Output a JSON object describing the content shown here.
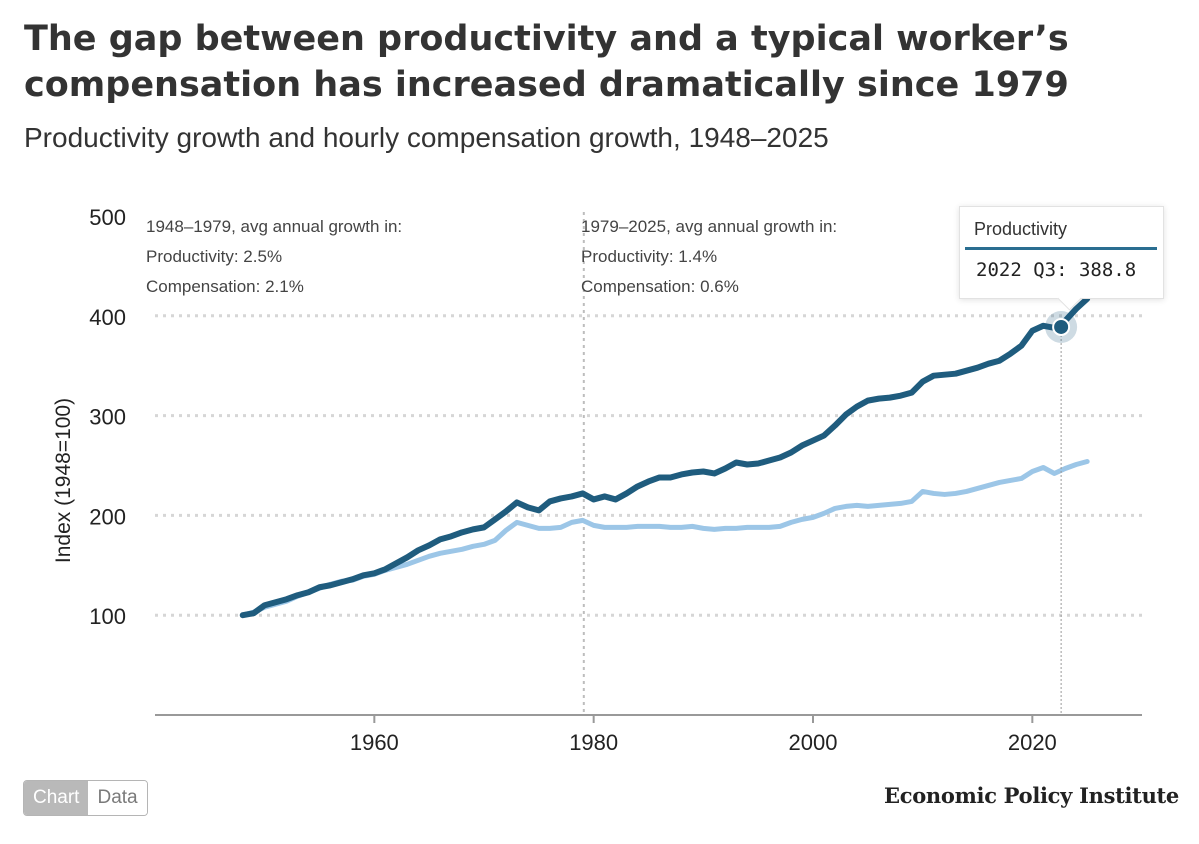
{
  "header": {
    "title": "The gap between productivity and a typical worker’s compensation has increased dramatically since 1979",
    "subtitle": "Productivity growth and hourly compensation growth, 1948–2025"
  },
  "annotations": {
    "left": {
      "heading": "1948–1979, avg annual growth in:",
      "productivity": "Productivity: 2.5%",
      "compensation": "Compensation: 2.1%"
    },
    "right": {
      "heading": "1979–2025, avg annual growth in:",
      "productivity": "Productivity: 1.4%",
      "compensation": "Compensation: 0.6%"
    }
  },
  "tooltip": {
    "series": "Productivity",
    "label": "2022 Q3: 388.8",
    "x": 2022.625,
    "y": 388.8
  },
  "toggle": {
    "chart_label": "Chart",
    "data_label": "Data",
    "active": "Chart"
  },
  "brand": "Economic Policy Institute",
  "colors": {
    "productivity": "#1f5c7e",
    "compensation": "#9cc6e7",
    "grid": "#d6d6d6",
    "text": "#333333"
  },
  "chart_data": {
    "type": "line",
    "ylabel": "Index (1948=100)",
    "xlabel": "",
    "xlim": [
      1940,
      2030
    ],
    "ylim": [
      0,
      500
    ],
    "xticks": [
      1960,
      1980,
      2000,
      2020
    ],
    "yticks": [
      100,
      200,
      300,
      400,
      500
    ],
    "grid": "horizontal dotted",
    "reference_lines": [
      1979
    ],
    "series": [
      {
        "key": "productivity",
        "x": [
          1948,
          1949,
          1950,
          1951,
          1952,
          1953,
          1954,
          1955,
          1956,
          1957,
          1958,
          1959,
          1960,
          1961,
          1962,
          1963,
          1964,
          1965,
          1966,
          1967,
          1968,
          1969,
          1970,
          1971,
          1972,
          1973,
          1974,
          1975,
          1976,
          1977,
          1978,
          1979,
          1980,
          1981,
          1982,
          1983,
          1984,
          1985,
          1986,
          1987,
          1988,
          1989,
          1990,
          1991,
          1992,
          1993,
          1994,
          1995,
          1996,
          1997,
          1998,
          1999,
          2000,
          2001,
          2002,
          2003,
          2004,
          2005,
          2006,
          2007,
          2008,
          2009,
          2010,
          2011,
          2012,
          2013,
          2014,
          2015,
          2016,
          2017,
          2018,
          2019,
          2020,
          2021,
          2022,
          2023,
          2024,
          2025
        ],
        "values": [
          100,
          102,
          110,
          113,
          116,
          120,
          123,
          128,
          130,
          133,
          136,
          140,
          142,
          146,
          152,
          158,
          165,
          170,
          176,
          179,
          183,
          186,
          188,
          196,
          204,
          213,
          208,
          205,
          214,
          217,
          219,
          222,
          216,
          219,
          216,
          222,
          229,
          234,
          238,
          238,
          241,
          243,
          244,
          242,
          247,
          253,
          251,
          252,
          255,
          258,
          263,
          270,
          275,
          280,
          290,
          301,
          309,
          315,
          317,
          318,
          320,
          323,
          334,
          340,
          341,
          342,
          345,
          348,
          352,
          355,
          362,
          370,
          385,
          390,
          388,
          395,
          407,
          417
        ]
      },
      {
        "key": "compensation",
        "x": [
          1948,
          1949,
          1950,
          1951,
          1952,
          1953,
          1954,
          1955,
          1956,
          1957,
          1958,
          1959,
          1960,
          1961,
          1962,
          1963,
          1964,
          1965,
          1966,
          1967,
          1968,
          1969,
          1970,
          1971,
          1972,
          1973,
          1974,
          1975,
          1976,
          1977,
          1978,
          1979,
          1980,
          1981,
          1982,
          1983,
          1984,
          1985,
          1986,
          1987,
          1988,
          1989,
          1990,
          1991,
          1992,
          1993,
          1994,
          1995,
          1996,
          1997,
          1998,
          1999,
          2000,
          2001,
          2002,
          2003,
          2004,
          2005,
          2006,
          2007,
          2008,
          2009,
          2010,
          2011,
          2012,
          2013,
          2014,
          2015,
          2016,
          2017,
          2018,
          2019,
          2020,
          2021,
          2022,
          2023,
          2024,
          2025
        ],
        "values": [
          100,
          103,
          108,
          111,
          114,
          119,
          123,
          127,
          131,
          134,
          135,
          139,
          141,
          145,
          148,
          151,
          155,
          159,
          162,
          164,
          166,
          169,
          171,
          175,
          185,
          193,
          190,
          187,
          187,
          188,
          193,
          195,
          190,
          188,
          188,
          188,
          189,
          189,
          189,
          188,
          188,
          189,
          187,
          186,
          187,
          187,
          188,
          188,
          188,
          189,
          193,
          196,
          198,
          202,
          207,
          209,
          210,
          209,
          210,
          211,
          212,
          214,
          224,
          222,
          221,
          222,
          224,
          227,
          230,
          233,
          235,
          237,
          244,
          248,
          242,
          247,
          251,
          254
        ]
      }
    ]
  }
}
